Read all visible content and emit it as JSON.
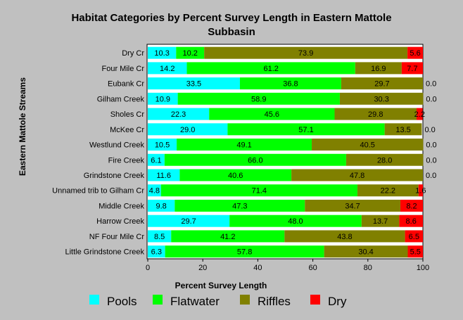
{
  "chart_data": {
    "type": "bar",
    "orientation": "horizontal",
    "stacked": true,
    "title_lines": [
      "Habitat Categories by Percent Survey Length in Eastern Mattole",
      "Subbasin"
    ],
    "xlabel": "Percent Survey Length",
    "ylabel": "Eastern Mattole Streams",
    "xlim": [
      0,
      100
    ],
    "xticks": [
      "0",
      "20",
      "40",
      "60",
      "80",
      "100"
    ],
    "grid": false,
    "legend_position": "bottom",
    "categories": [
      "Dry Cr",
      "Four Mile Cr",
      "Eubank Cr",
      "Gilham Creek",
      "Sholes Cr",
      "McKee Cr",
      "Westlund Creek",
      "Fire Creek",
      "Grindstone Creek",
      "Unnamed trib to Gilham Cr",
      "Middle Creek",
      "Harrow Creek",
      "NF Four Mile Cr",
      "Little Grindstone Creek"
    ],
    "series": [
      {
        "name": "Pools",
        "color": "#00ffff",
        "values": [
          10.3,
          14.2,
          33.5,
          10.9,
          22.3,
          29.0,
          10.5,
          6.1,
          11.6,
          4.8,
          9.8,
          29.7,
          8.5,
          6.3
        ],
        "labels": [
          "10.3",
          "14.2",
          "33.5",
          "10.9",
          "22.3",
          "29.0",
          "10.5",
          "6.1",
          "11.6",
          "4.8",
          "9.8",
          "29.7",
          "8.5",
          "6.3"
        ]
      },
      {
        "name": "Flatwater",
        "color": "#00ff00",
        "values": [
          10.2,
          61.2,
          36.8,
          58.9,
          45.6,
          57.1,
          49.1,
          66.0,
          40.6,
          71.4,
          47.3,
          48.0,
          41.2,
          57.8
        ],
        "labels": [
          "10.2",
          "61.2",
          "36.8",
          "58.9",
          "45.6",
          "57.1",
          "49.1",
          "66.0",
          "40.6",
          "71.4",
          "47.3",
          "48.0",
          "41.2",
          "57.8"
        ]
      },
      {
        "name": "Riffles",
        "color": "#808000",
        "values": [
          73.9,
          16.9,
          29.7,
          30.3,
          29.8,
          13.5,
          40.5,
          28.0,
          47.8,
          22.2,
          34.7,
          13.7,
          43.8,
          30.4
        ],
        "labels": [
          "73.9",
          "16.9",
          "29.7",
          "30.3",
          "29.8",
          "13.5",
          "40.5",
          "28.0",
          "47.8",
          "22.2",
          "34.7",
          "13.7",
          "43.8",
          "30.4"
        ]
      },
      {
        "name": "Dry",
        "color": "#ff0000",
        "values": [
          5.6,
          7.7,
          0,
          0,
          2.2,
          0,
          0,
          0,
          0,
          1.6,
          8.2,
          8.6,
          6.5,
          5.5
        ],
        "labels": [
          "5.6",
          "7.7",
          "0.0",
          "0.0",
          "2.2",
          "0.0",
          "0.0",
          "0.0",
          "0.0",
          "1.6",
          "8.2",
          "8.6",
          "6.5",
          "5.5"
        ]
      }
    ]
  }
}
